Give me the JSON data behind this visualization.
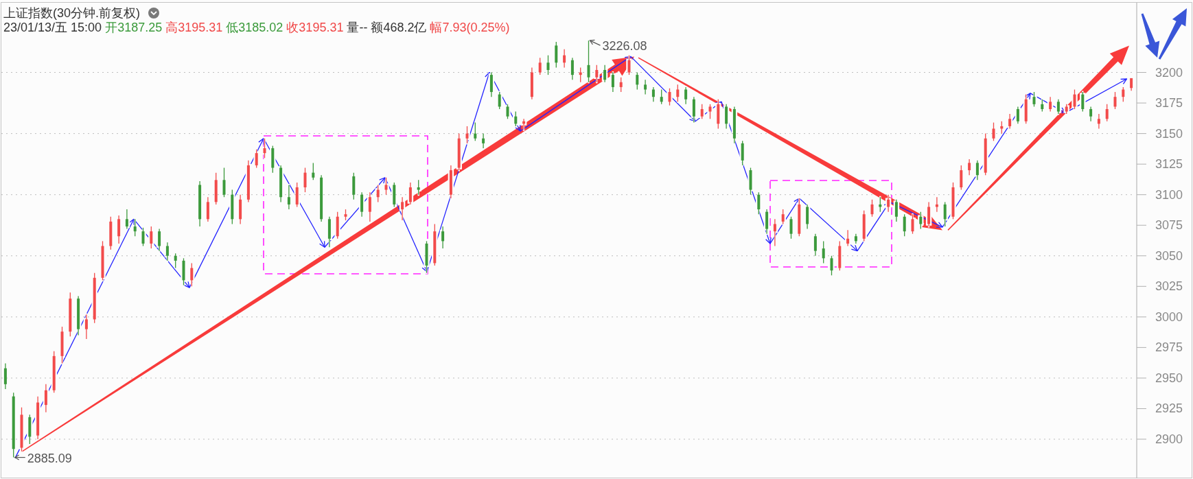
{
  "chart_data": {
    "type": "candlestick",
    "title": "上证指数(30分钟.前复权)",
    "subtitle": "23/01/13/五 15:00 开3187.25 高3195.31 低3185.02 收3195.31 量-- 额468.2亿 幅7.93(0.25%)",
    "categories": [
      null,
      null,
      null,
      null,
      null,
      null,
      null,
      null,
      null,
      null,
      null,
      null,
      null,
      null,
      null,
      null,
      null,
      null,
      null,
      null,
      null,
      null,
      null,
      null,
      null,
      null,
      null,
      null,
      null,
      null,
      null,
      null,
      null,
      null,
      null,
      null,
      null,
      null,
      null,
      null,
      null,
      null,
      null,
      null,
      null,
      null,
      null,
      null,
      null,
      null,
      null,
      null,
      null,
      null,
      null,
      null,
      null,
      null,
      null,
      null,
      null,
      null,
      null,
      null,
      null,
      null,
      null,
      null,
      null,
      null,
      null,
      null,
      null,
      null,
      null,
      null,
      null,
      null,
      null,
      null,
      null,
      null,
      null,
      null,
      null,
      null,
      null,
      null,
      null,
      null,
      null,
      null,
      null,
      null,
      null,
      null,
      null,
      null,
      null,
      null,
      null,
      null,
      null,
      null,
      null,
      null,
      null,
      null,
      null,
      null,
      null,
      null,
      null,
      null,
      null,
      null,
      null,
      null,
      null,
      null,
      null,
      null,
      null,
      null,
      null,
      null,
      null,
      null,
      null,
      null,
      null,
      null,
      null,
      null,
      null,
      null,
      null,
      null,
      null,
      null
    ],
    "ohlc": [
      [
        2958,
        2962,
        2941,
        2945
      ],
      [
        2935,
        2938,
        2885.09,
        2892
      ],
      [
        2893,
        2926,
        2890,
        2920
      ],
      [
        2918,
        2920,
        2896,
        2902
      ],
      [
        2903,
        2935,
        2900,
        2930
      ],
      [
        2928,
        2945,
        2922,
        2940
      ],
      [
        2940,
        2972,
        2938,
        2968
      ],
      [
        2968,
        2992,
        2962,
        2988
      ],
      [
        2988,
        3020,
        2984,
        3015
      ],
      [
        3015,
        3017,
        2985,
        2990
      ],
      [
        2990,
        3002,
        2982,
        2998
      ],
      [
        2998,
        3036,
        2995,
        3032
      ],
      [
        3032,
        3062,
        3030,
        3058
      ],
      [
        3058,
        3082,
        3055,
        3078
      ],
      [
        3066,
        3083,
        3060,
        3080
      ],
      [
        3080,
        3088,
        3072,
        3074
      ],
      [
        3074,
        3080,
        3066,
        3070
      ],
      [
        3070,
        3073,
        3058,
        3060
      ],
      [
        3060,
        3074,
        3056,
        3070
      ],
      [
        3070,
        3072,
        3054,
        3058
      ],
      [
        3058,
        3061,
        3046,
        3050
      ],
      [
        3050,
        3052,
        3040,
        3046
      ],
      [
        3046,
        3048,
        3026,
        3030
      ],
      [
        3030,
        3044,
        3025,
        3040
      ],
      [
        3108,
        3111,
        3074,
        3080
      ],
      [
        3080,
        3098,
        3078,
        3094
      ],
      [
        3094,
        3118,
        3092,
        3112
      ],
      [
        3112,
        3122,
        3098,
        3100
      ],
      [
        3100,
        3104,
        3076,
        3080
      ],
      [
        3080,
        3100,
        3076,
        3096
      ],
      [
        3096,
        3128,
        3094,
        3124
      ],
      [
        3124,
        3137,
        3122,
        3134
      ],
      [
        3134,
        3146,
        3130,
        3138
      ],
      [
        3138,
        3140,
        3118,
        3122
      ],
      [
        3122,
        3124,
        3094,
        3098
      ],
      [
        3098,
        3108,
        3088,
        3092
      ],
      [
        3092,
        3110,
        3090,
        3106
      ],
      [
        3106,
        3122,
        3102,
        3118
      ],
      [
        3118,
        3126,
        3112,
        3114
      ],
      [
        3114,
        3116,
        3078,
        3080
      ],
      [
        3080,
        3082,
        3057,
        3064
      ],
      [
        3066,
        3086,
        3064,
        3082
      ],
      [
        3082,
        3088,
        3079,
        3084
      ],
      [
        3115,
        3118,
        3096,
        3100
      ],
      [
        3100,
        3102,
        3082,
        3086
      ],
      [
        3086,
        3102,
        3078,
        3098
      ],
      [
        3098,
        3108,
        3094,
        3104
      ],
      [
        3104,
        3114,
        3100,
        3108
      ],
      [
        3108,
        3110,
        3090,
        3092
      ],
      [
        3088,
        3098,
        3079,
        3094
      ],
      [
        3094,
        3110,
        3092,
        3106
      ],
      [
        3106,
        3112,
        3100,
        3104
      ],
      [
        3060,
        3062,
        3036,
        3042
      ],
      [
        3044,
        3076,
        3042,
        3070
      ],
      [
        3070,
        3074,
        3056,
        3062
      ],
      [
        3100,
        3124,
        3097,
        3120
      ],
      [
        3122,
        3150,
        3120,
        3146
      ],
      [
        3146,
        3156,
        3142,
        3150
      ],
      [
        3150,
        3159,
        3144,
        3146
      ],
      [
        3146,
        3150,
        3138,
        3142
      ],
      [
        3198,
        3200,
        3180,
        3184
      ],
      [
        3182,
        3184,
        3170,
        3172
      ],
      [
        3172,
        3174,
        3162,
        3164
      ],
      [
        3164,
        3168,
        3156,
        3158
      ],
      [
        3158,
        3162,
        3153,
        3160
      ],
      [
        3180,
        3204,
        3178,
        3200
      ],
      [
        3200,
        3212,
        3198,
        3208
      ],
      [
        3208,
        3214,
        3198,
        3202
      ],
      [
        3222,
        3225,
        3204,
        3208
      ],
      [
        3208,
        3219,
        3204,
        3214
      ],
      [
        3210,
        3212,
        3194,
        3198
      ],
      [
        3198,
        3204,
        3192,
        3200
      ],
      [
        3206,
        3226.08,
        3192,
        3196
      ],
      [
        3196,
        3206,
        3192,
        3202
      ],
      [
        3202,
        3206,
        3192,
        3194
      ],
      [
        3198,
        3200,
        3184,
        3188
      ],
      [
        3188,
        3196,
        3184,
        3192
      ],
      [
        3200,
        3214,
        3198,
        3210
      ],
      [
        3198,
        3200,
        3186,
        3190
      ],
      [
        3190,
        3194,
        3182,
        3186
      ],
      [
        3186,
        3188,
        3176,
        3180
      ],
      [
        3180,
        3186,
        3174,
        3176
      ],
      [
        3176,
        3187,
        3173,
        3184
      ],
      [
        3180,
        3190,
        3176,
        3186
      ],
      [
        3186,
        3188,
        3174,
        3178
      ],
      [
        3178,
        3180,
        3159,
        3164
      ],
      [
        3164,
        3174,
        3162,
        3170
      ],
      [
        3168,
        3174,
        3162,
        3172
      ],
      [
        3158,
        3178,
        3154,
        3174
      ],
      [
        3172,
        3174,
        3154,
        3158
      ],
      [
        3170,
        3172,
        3142,
        3146
      ],
      [
        3142,
        3144,
        3124,
        3128
      ],
      [
        3120,
        3122,
        3100,
        3104
      ],
      [
        3100,
        3102,
        3084,
        3088
      ],
      [
        3086,
        3088,
        3068,
        3072
      ],
      [
        3070,
        3080,
        3058,
        3076
      ],
      [
        3078,
        3088,
        3076,
        3084
      ],
      [
        3080,
        3082,
        3064,
        3068
      ],
      [
        3068,
        3097,
        3066,
        3092
      ],
      [
        3090,
        3092,
        3072,
        3076
      ],
      [
        3066,
        3068,
        3050,
        3054
      ],
      [
        3056,
        3062,
        3044,
        3048
      ],
      [
        3048,
        3050,
        3034,
        3038
      ],
      [
        3040,
        3062,
        3038,
        3058
      ],
      [
        3060,
        3071,
        3058,
        3064
      ],
      [
        3066,
        3068,
        3060,
        3062
      ],
      [
        3064,
        3087,
        3062,
        3084
      ],
      [
        3084,
        3096,
        3082,
        3092
      ],
      [
        3092,
        3098,
        3086,
        3090
      ],
      [
        3090,
        3100,
        3086,
        3096
      ],
      [
        3094,
        3096,
        3078,
        3082
      ],
      [
        3082,
        3084,
        3066,
        3070
      ],
      [
        3070,
        3084,
        3068,
        3080
      ],
      [
        3082,
        3086,
        3072,
        3076
      ],
      [
        3076,
        3094,
        3074,
        3090
      ],
      [
        3090,
        3098,
        3086,
        3092
      ],
      [
        3092,
        3094,
        3074,
        3080
      ],
      [
        3082,
        3110,
        3080,
        3106
      ],
      [
        3106,
        3124,
        3104,
        3120
      ],
      [
        3120,
        3129,
        3116,
        3126
      ],
      [
        3126,
        3128,
        3112,
        3116
      ],
      [
        3118,
        3150,
        3116,
        3146
      ],
      [
        3146,
        3159,
        3144,
        3154
      ],
      [
        3154,
        3160,
        3150,
        3156
      ],
      [
        3156,
        3166,
        3154,
        3162
      ],
      [
        3170,
        3172,
        3158,
        3160
      ],
      [
        3160,
        3182,
        3158,
        3178
      ],
      [
        3180,
        3184,
        3172,
        3174
      ],
      [
        3174,
        3178,
        3168,
        3170
      ],
      [
        3170,
        3180,
        3168,
        3176
      ],
      [
        3176,
        3178,
        3166,
        3168
      ],
      [
        3168,
        3174,
        3166,
        3172
      ],
      [
        3172,
        3186,
        3170,
        3182
      ],
      [
        3182,
        3184,
        3168,
        3170
      ],
      [
        3170,
        3172,
        3160,
        3164
      ],
      [
        3158,
        3166,
        3154,
        3162
      ],
      [
        3162,
        3174,
        3160,
        3170
      ],
      [
        3172,
        3184,
        3170,
        3180
      ],
      [
        3180,
        3188,
        3176,
        3186
      ],
      [
        3187.25,
        3195.31,
        3185.02,
        3195.31
      ]
    ],
    "colors": [
      "#3c9a3c",
      "#3c9a3c",
      "#f24b4b",
      "#3c9a3c",
      "#f24b4b",
      "#f24b4b",
      "#f24b4b",
      "#f24b4b",
      "#f24b4b",
      "#3c9a3c",
      "#f24b4b",
      "#f24b4b",
      "#f24b4b",
      "#f24b4b",
      "#f24b4b",
      "#3c9a3c",
      "#3c9a3c",
      "#3c9a3c",
      "#f24b4b",
      "#3c9a3c",
      "#3c9a3c",
      "#3c9a3c",
      "#3c9a3c",
      "#f24b4b",
      "#3c9a3c",
      "#f24b4b",
      "#f24b4b",
      "#3c9a3c",
      "#3c9a3c",
      "#f24b4b",
      "#f24b4b",
      "#f24b4b",
      "#f24b4b",
      "#3c9a3c",
      "#3c9a3c",
      "#3c9a3c",
      "#f24b4b",
      "#f24b4b",
      "#3c9a3c",
      "#3c9a3c",
      "#3c9a3c",
      "#f24b4b",
      "#f24b4b",
      "#3c9a3c",
      "#3c9a3c",
      "#f24b4b",
      "#f24b4b",
      "#f24b4b",
      "#3c9a3c",
      "#f24b4b",
      "#f24b4b",
      "#3c9a3c",
      "#3c9a3c",
      "#f24b4b",
      "#3c9a3c",
      "#f24b4b",
      "#f24b4b",
      "#f24b4b",
      "#3c9a3c",
      "#3c9a3c",
      "#3c9a3c",
      "#3c9a3c",
      "#3c9a3c",
      "#3c9a3c",
      "#f24b4b",
      "#f24b4b",
      "#f24b4b",
      "#3c9a3c",
      "#3c9a3c",
      "#f24b4b",
      "#3c9a3c",
      "#f24b4b",
      "#3c9a3c",
      "#f24b4b",
      "#3c9a3c",
      "#3c9a3c",
      "#f24b4b",
      "#f24b4b",
      "#3c9a3c",
      "#3c9a3c",
      "#3c9a3c",
      "#3c9a3c",
      "#f24b4b",
      "#f24b4b",
      "#3c9a3c",
      "#3c9a3c",
      "#f24b4b",
      "#f24b4b",
      "#f24b4b",
      "#3c9a3c",
      "#3c9a3c",
      "#3c9a3c",
      "#3c9a3c",
      "#3c9a3c",
      "#3c9a3c",
      "#f24b4b",
      "#f24b4b",
      "#3c9a3c",
      "#f24b4b",
      "#3c9a3c",
      "#3c9a3c",
      "#3c9a3c",
      "#3c9a3c",
      "#f24b4b",
      "#f24b4b",
      "#3c9a3c",
      "#f24b4b",
      "#f24b4b",
      "#3c9a3c",
      "#f24b4b",
      "#3c9a3c",
      "#3c9a3c",
      "#f24b4b",
      "#3c9a3c",
      "#f24b4b",
      "#f24b4b",
      "#3c9a3c",
      "#f24b4b",
      "#f24b4b",
      "#f24b4b",
      "#3c9a3c",
      "#f24b4b",
      "#f24b4b",
      "#f24b4b",
      "#f24b4b",
      "#3c9a3c",
      "#f24b4b",
      "#3c9a3c",
      "#3c9a3c",
      "#f24b4b",
      "#3c9a3c",
      "#f24b4b",
      "#f24b4b",
      "#3c9a3c",
      "#3c9a3c",
      "#f24b4b",
      "#f24b4b",
      "#f24b4b",
      "#f24b4b",
      "#f24b4b"
    ],
    "ylim": [
      2868,
      3257
    ],
    "yticks": [
      2900,
      2925,
      2950,
      2975,
      3000,
      3025,
      3050,
      3075,
      3100,
      3125,
      3150,
      3175,
      3200
    ],
    "grid": "y",
    "annotations": [
      "3226.08",
      "2885.09"
    ]
  }
}
